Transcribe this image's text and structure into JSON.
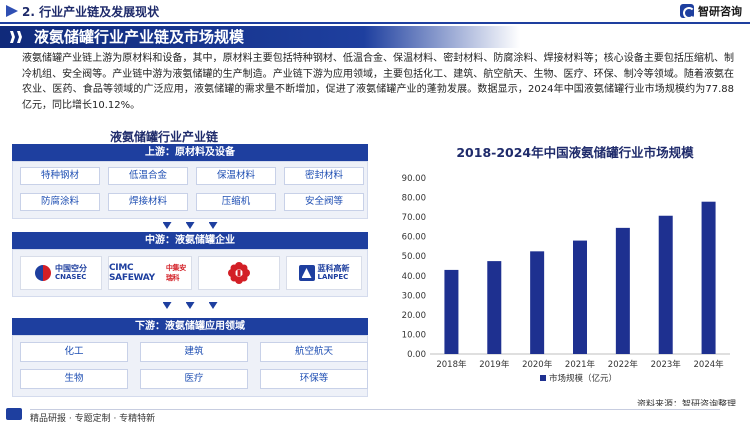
{
  "header": {
    "section_title": "2. 行业产业链及发展现状",
    "brand": "智研咨询"
  },
  "banner": {
    "title": "液氨储罐行业产业链及市场规模"
  },
  "description": "液氨储罐产业链上游为原材料和设备，其中，原材料主要包括特种钢材、低温合金、保温材料、密封材料、防腐涂料、焊接材料等；核心设备主要包括压缩机、制冷机组、安全阀等。产业链中游为液氨储罐的生产制造。产业链下游为应用领域，主要包括化工、建筑、航空航天、生物、医疗、环保、制冷等领域。随着液氨在农业、医药、食品等领域的广泛应用，液氨储罐的需求量不断增加，促进了液氨储罐产业的蓬勃发展。数据显示，2024年中国液氨储罐行业市场规模约为77.88亿元，同比增长10.12%。",
  "diagram": {
    "title": "液氨储罐行业产业链",
    "upstream": {
      "label": "上游：原材料及设备",
      "items": [
        "特种钢材",
        "低温合金",
        "保温材料",
        "密封材料",
        "防腐涂料",
        "焊接材料",
        "压缩机",
        "安全阀等"
      ]
    },
    "midstream": {
      "label": "中游：液氨储罐企业",
      "logos": [
        {
          "name": "cnasec-logo",
          "line1": "中国空分",
          "line2": "CNASEC"
        },
        {
          "name": "cimc-safeway-logo",
          "line1": "CIMC SAFEWAY",
          "line2": "中集安瑞科"
        },
        {
          "name": "red-flower-logo"
        },
        {
          "name": "lanpec-logo",
          "line1": "蓝科高新",
          "line2": "LANPEC"
        }
      ]
    },
    "downstream": {
      "label": "下游：液氨储罐应用领域",
      "items": [
        "化工",
        "建筑",
        "航空航天",
        "生物",
        "医疗",
        "环保等"
      ]
    }
  },
  "chart_data": {
    "type": "bar",
    "title": "2018-2024年中国液氨储罐行业市场规模",
    "categories": [
      "2018年",
      "2019年",
      "2020年",
      "2021年",
      "2022年",
      "2023年",
      "2024年"
    ],
    "series": [
      {
        "name": "市场规模（亿元）",
        "values": [
          43.0,
          47.5,
          52.5,
          58.0,
          64.5,
          70.7,
          77.88
        ]
      }
    ],
    "ylim": [
      0,
      90
    ],
    "yticks": [
      "0.00",
      "10.00",
      "20.00",
      "30.00",
      "40.00",
      "50.00",
      "60.00",
      "70.00",
      "80.00",
      "90.00"
    ],
    "grid": false,
    "legend": "bottom",
    "bar_color": "#1e3090"
  },
  "source": "资料来源：智研咨询整理",
  "footer": {
    "text": "精品研报 · 专题定制 · 专精特新"
  },
  "colors": {
    "primary": "#1e3f9f",
    "dark": "#102a7a",
    "accent": "#1f4fb3"
  }
}
